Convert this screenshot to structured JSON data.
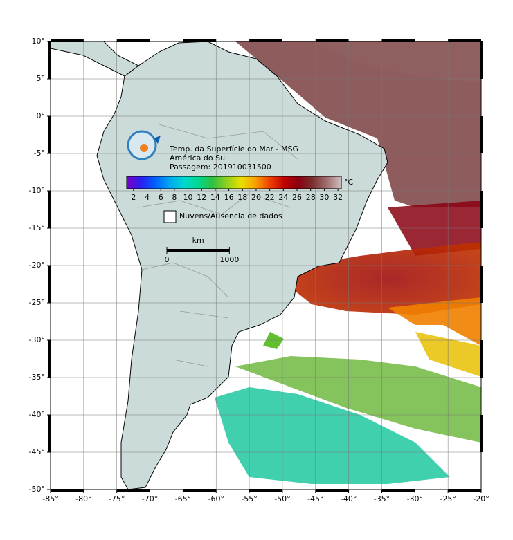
{
  "map": {
    "lon_range": [
      -85,
      -20
    ],
    "lat_range": [
      -50,
      10
    ],
    "grid": true,
    "lon_ticks": [
      {
        "value": -85,
        "label": "-85°"
      },
      {
        "value": -80,
        "label": "-80°"
      },
      {
        "value": -75,
        "label": "-75°"
      },
      {
        "value": -70,
        "label": "-70°"
      },
      {
        "value": -65,
        "label": "-65°"
      },
      {
        "value": -60,
        "label": "-60°"
      },
      {
        "value": -55,
        "label": "-55°"
      },
      {
        "value": -50,
        "label": "-50°"
      },
      {
        "value": -45,
        "label": "-45°"
      },
      {
        "value": -40,
        "label": "-40°"
      },
      {
        "value": -35,
        "label": "-35°"
      },
      {
        "value": -30,
        "label": "-30°"
      },
      {
        "value": -25,
        "label": "-25°"
      },
      {
        "value": -20,
        "label": "-20°"
      }
    ],
    "lat_ticks": [
      {
        "value": 10,
        "label": "10°"
      },
      {
        "value": 5,
        "label": "5°"
      },
      {
        "value": 0,
        "label": "0°"
      },
      {
        "value": -5,
        "label": "-5°"
      },
      {
        "value": -10,
        "label": "-10°"
      },
      {
        "value": -15,
        "label": "-15°"
      },
      {
        "value": -20,
        "label": "-20°"
      },
      {
        "value": -25,
        "label": "-25°"
      },
      {
        "value": -30,
        "label": "-30°"
      },
      {
        "value": -35,
        "label": "-35°"
      },
      {
        "value": -40,
        "label": "-40°"
      },
      {
        "value": -45,
        "label": "-45°"
      },
      {
        "value": -50,
        "label": "-50°"
      }
    ]
  },
  "title_lines": [
    "Temp. da Superfície do Mar - MSG",
    "América do Sul",
    "Passagem: 201910031500"
  ],
  "colorbar": {
    "unit": "°C",
    "range": [
      1,
      32.5
    ],
    "ticks": [
      2,
      4,
      6,
      8,
      10,
      12,
      14,
      16,
      18,
      20,
      22,
      24,
      26,
      28,
      30,
      32
    ],
    "colors": [
      "#7a00c8",
      "#2a20f0",
      "#0060ff",
      "#00a8f0",
      "#00d8d0",
      "#00d890",
      "#30c040",
      "#90d020",
      "#e8e000",
      "#f8a000",
      "#f04000",
      "#c00000",
      "#8a0010",
      "#7a3030",
      "#a07070",
      "#d0c0c0"
    ]
  },
  "legend": {
    "label": "Nuvens/Ausencia de dados"
  },
  "scale_bar": {
    "unit": "km",
    "ticks": [
      0,
      1000
    ]
  }
}
